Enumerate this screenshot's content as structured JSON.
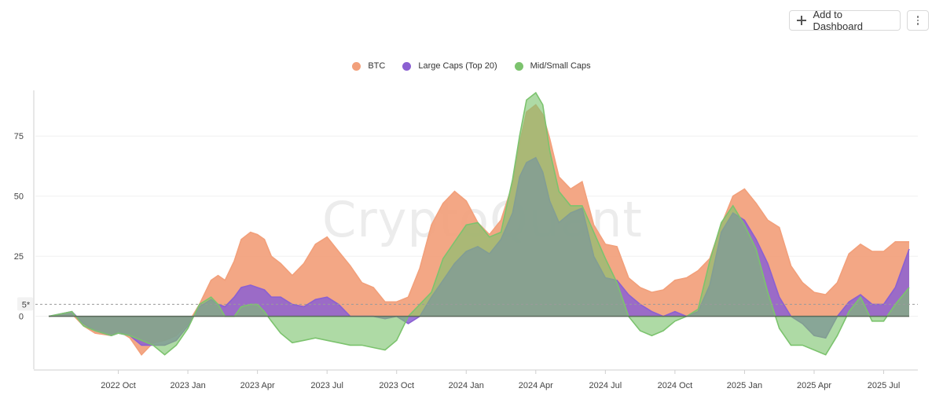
{
  "toolbar": {
    "add_label": "Add to Dashboard",
    "add_icon": "plus-icon",
    "more_icon": "kebab-menu-icon"
  },
  "watermark": "CryptoQuant",
  "chart_data": {
    "type": "area",
    "title": "",
    "xlabel": "",
    "ylabel": "",
    "ylim": [
      -22,
      95
    ],
    "xlim": [
      0,
      37.1
    ],
    "x_unit": "months since 2022-07",
    "reference_line": {
      "value": 5,
      "label": "5*"
    },
    "y_ticks": [
      0,
      25,
      50,
      75
    ],
    "x_ticks": [
      {
        "x": 3,
        "label": "2022 Oct"
      },
      {
        "x": 6,
        "label": "2023 Jan"
      },
      {
        "x": 9,
        "label": "2023 Apr"
      },
      {
        "x": 12,
        "label": "2023 Jul"
      },
      {
        "x": 15,
        "label": "2023 Oct"
      },
      {
        "x": 18,
        "label": "2024 Jan"
      },
      {
        "x": 21,
        "label": "2024 Apr"
      },
      {
        "x": 24,
        "label": "2024 Jul"
      },
      {
        "x": 27,
        "label": "2024 Oct"
      },
      {
        "x": 30,
        "label": "2025 Jan"
      },
      {
        "x": 33,
        "label": "2025 Apr"
      },
      {
        "x": 36,
        "label": "2025 Jul"
      }
    ],
    "x": [
      0,
      1,
      1.5,
      2,
      2.7,
      3,
      3.5,
      4,
      4.5,
      5,
      5.5,
      6,
      6.5,
      7,
      7.3,
      7.6,
      8,
      8.3,
      8.7,
      9,
      9.3,
      9.6,
      10,
      10.5,
      11,
      11.5,
      12,
      12.5,
      13,
      13.5,
      14,
      14.5,
      15,
      15.5,
      16,
      16.5,
      17,
      17.5,
      18,
      18.5,
      19,
      19.5,
      20,
      20.3,
      20.6,
      21,
      21.3,
      21.6,
      22,
      22.5,
      23,
      23.5,
      24,
      24.5,
      25,
      25.5,
      26,
      26.5,
      27,
      27.5,
      28,
      28.5,
      29,
      29.5,
      30,
      30.5,
      31,
      31.5,
      32,
      32.5,
      33,
      33.5,
      34,
      34.5,
      35,
      35.5,
      36,
      36.5,
      37.1
    ],
    "series": [
      {
        "name": "BTC",
        "color": "#f2a07b",
        "values": [
          0,
          1,
          -4,
          -7,
          -8,
          -6,
          -9,
          -16,
          -11,
          -10,
          -8,
          -3,
          5,
          15,
          17,
          15,
          23,
          32,
          35,
          34,
          32,
          25,
          22,
          17,
          22,
          30,
          33,
          27,
          21,
          14,
          12,
          6,
          6,
          8,
          20,
          38,
          47,
          52,
          48,
          39,
          34,
          40,
          55,
          72,
          85,
          88,
          84,
          74,
          58,
          53,
          56,
          38,
          30,
          29,
          16,
          12,
          10,
          11,
          15,
          16,
          19,
          24,
          38,
          50,
          53,
          47,
          40,
          37,
          21,
          14,
          10,
          9,
          14,
          26,
          30,
          27,
          27,
          31,
          31
        ]
      },
      {
        "name": "Large Caps (Top 20)",
        "color": "#8b60d2",
        "values": [
          0,
          2,
          -3,
          -6,
          -8,
          -7,
          -8,
          -12,
          -12,
          -12,
          -10,
          -4,
          4,
          7,
          5,
          4,
          8,
          12,
          13,
          12,
          11,
          8,
          8,
          5,
          4,
          7,
          8,
          5,
          0,
          0,
          0,
          -1,
          0,
          -3,
          0,
          8,
          15,
          22,
          27,
          29,
          26,
          32,
          43,
          58,
          64,
          66,
          60,
          48,
          39,
          43,
          45,
          25,
          16,
          15,
          9,
          5,
          2,
          0,
          2,
          0,
          2,
          13,
          35,
          43,
          40,
          32,
          22,
          8,
          0,
          -3,
          -8,
          -9,
          0,
          6,
          9,
          5,
          5,
          12,
          28
        ]
      },
      {
        "name": "Mid/Small Caps",
        "color": "#7cc36e",
        "values": [
          0,
          2,
          -4,
          -6,
          -8,
          -7,
          -8,
          -10,
          -12,
          -16,
          -12,
          -5,
          5,
          8,
          5,
          0,
          0,
          4,
          5,
          5,
          2,
          -2,
          -7,
          -11,
          -10,
          -9,
          -10,
          -11,
          -12,
          -12,
          -13,
          -14,
          -10,
          0,
          5,
          10,
          24,
          31,
          38,
          39,
          33,
          35,
          57,
          75,
          90,
          93,
          88,
          69,
          52,
          46,
          46,
          35,
          24,
          14,
          0,
          -6,
          -8,
          -6,
          -2,
          0,
          3,
          23,
          39,
          46,
          38,
          28,
          10,
          -5,
          -12,
          -12,
          -14,
          -16,
          -8,
          2,
          8,
          -2,
          -2,
          5,
          12
        ]
      }
    ]
  }
}
